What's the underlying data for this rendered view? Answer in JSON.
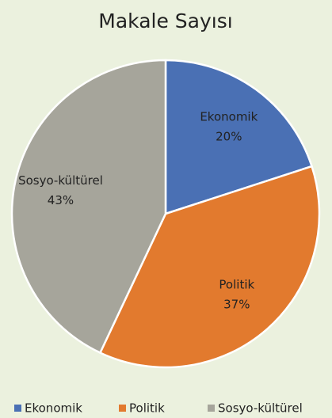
{
  "chart_data": {
    "type": "pie",
    "title": "Makale Sayısı",
    "categories": [
      "Ekonomik",
      "Politik",
      "Sosyo-kültürel"
    ],
    "values": [
      20,
      37,
      43
    ],
    "value_labels": [
      "20%",
      "37%",
      "43%"
    ],
    "colors": [
      "#4a70b4",
      "#e27a2e",
      "#a6a59b"
    ],
    "legend": "bottom"
  }
}
